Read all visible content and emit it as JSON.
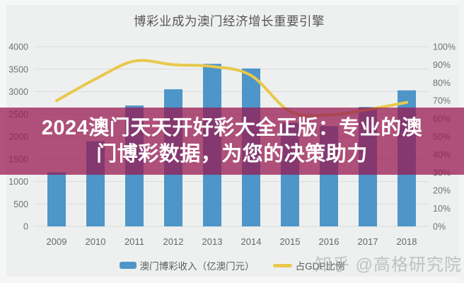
{
  "title": "博彩业成为澳门经济增长重要引擎",
  "overlay_banner": {
    "line1": "2024澳门天天开好彩大全正版：专业的澳",
    "line2": "门博彩数据，为您的决策助力",
    "bg_color": "rgba(151,24,79,0.74)",
    "text_color": "#ffffff"
  },
  "watermark": "知乎 @高格研究院",
  "legend": {
    "items": [
      {
        "swatch": "bar",
        "color": "#4e95c9",
        "label": "澳门博彩收入（亿澳门元）"
      },
      {
        "swatch": "line",
        "color": "#e8c84d",
        "label": "占GDP比例"
      }
    ]
  },
  "chart_data": {
    "type": "bar",
    "subtype": "combo-bar-line-dual-axis",
    "title": "博彩业成为澳门经济增长重要引擎",
    "categories": [
      "2009",
      "2010",
      "2011",
      "2012",
      "2013",
      "2014",
      "2015",
      "2016",
      "2017",
      "2018"
    ],
    "series": [
      {
        "name": "澳门博彩收入（亿澳门元）",
        "type": "bar",
        "axis": "left",
        "color": "#4e95c9",
        "values": [
          1203,
          1896,
          2691,
          3052,
          3618,
          3515,
          2308,
          2232,
          2657,
          3028
        ]
      },
      {
        "name": "占GDP比例",
        "type": "line",
        "axis": "right",
        "color": "#e8c84d",
        "unit": "%",
        "values": [
          70,
          82,
          92,
          90,
          89,
          84,
          64,
          62,
          65,
          69
        ]
      }
    ],
    "left_axis": {
      "min": 0,
      "max": 4000,
      "step": 500,
      "tick_labels": [
        "4000",
        "3500",
        "3000",
        "2500",
        "2000",
        "1500",
        "1000",
        "500",
        "0"
      ]
    },
    "right_axis": {
      "min": 0,
      "max": 100,
      "step": 10,
      "tick_labels": [
        "100%",
        "90%",
        "80%",
        "70%",
        "60%",
        "50%",
        "40%",
        "30%",
        "20%",
        "10%",
        "0%"
      ]
    },
    "grid": true,
    "gridlines_follow": "left_axis",
    "legend_position": "bottom"
  }
}
